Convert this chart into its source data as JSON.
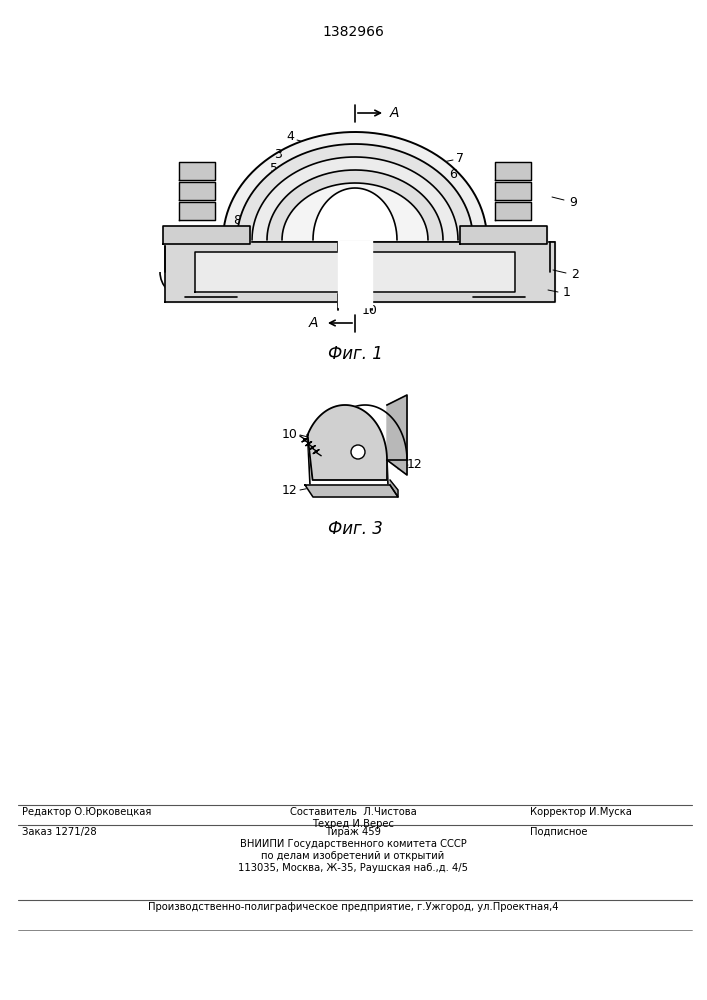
{
  "patent_number": "1382966",
  "bg_color": "#ffffff",
  "fig1_caption": "Фиг. 1",
  "fig3_caption": "Фиг. 3",
  "footer_editor": "Редактор О.Юрковецкая",
  "footer_composer": "Составитель  Л.Чистова",
  "footer_tech": "Техред И.Верес",
  "footer_corrector": "Корректор И.Муска",
  "footer_order": "Заказ 1271/28",
  "footer_circulation": "Тираж 459",
  "footer_subscription": "Подписное",
  "footer_vniipи": "ВНИИПИ Государственного комитета СССР",
  "footer_vniipи2": "по делам изобретений и открытий",
  "footer_address": "113035, Москва, Ж-35, Раушская наб.,д. 4/5",
  "footer_production": "Производственно-полиграфическое предприятие, г.Ужгород, ул.Проектная,4"
}
